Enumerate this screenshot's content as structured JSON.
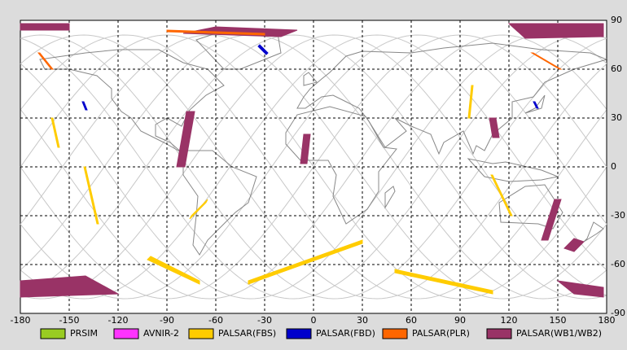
{
  "map": {
    "xlim": [
      -180,
      180
    ],
    "ylim": [
      -90,
      90
    ],
    "xticks": [
      -180,
      -150,
      -120,
      -90,
      -60,
      -30,
      0,
      30,
      60,
      90,
      120,
      150,
      180
    ],
    "yticks": [
      90,
      60,
      30,
      0,
      -30,
      -60,
      -90
    ],
    "grid": true,
    "legend": [
      {
        "name": "PRSIM",
        "color": "#99cc22"
      },
      {
        "name": "AVNIR-2",
        "color": "#ff33ff"
      },
      {
        "name": "PALSAR(FBS)",
        "color": "#ffcc00"
      },
      {
        "name": "PALSAR(FBD)",
        "color": "#0000cc"
      },
      {
        "name": "PALSAR(PLR)",
        "color": "#ff6600"
      },
      {
        "name": "PALSAR(WB1/WB2)",
        "color": "#993366"
      }
    ]
  }
}
